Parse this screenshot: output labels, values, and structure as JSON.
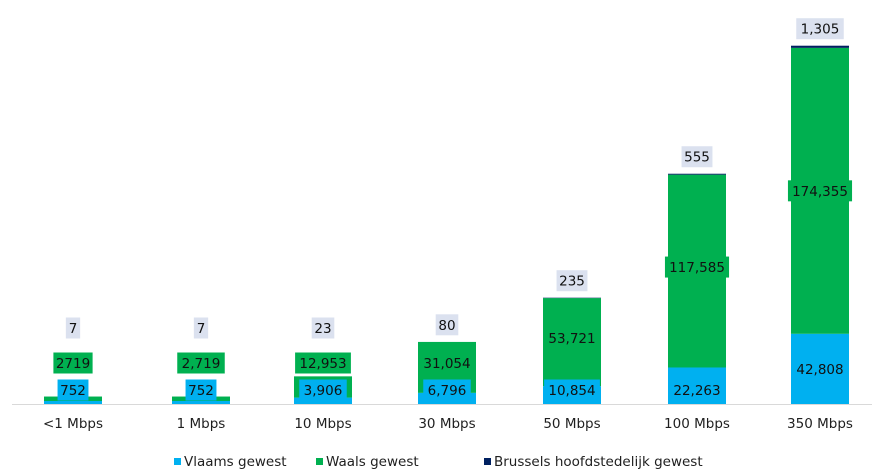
{
  "chart_data": {
    "type": "bar",
    "stacked": true,
    "categories": [
      "<1 Mbps",
      "1 Mbps",
      "10 Mbps",
      "30 Mbps",
      "50 Mbps",
      "100 Mbps",
      "350 Mbps"
    ],
    "series": [
      {
        "name": "Vlaams gewest",
        "color": "#00b0f0",
        "values": [
          752,
          752,
          3906,
          6796,
          10854,
          22263,
          42808
        ],
        "labels": [
          "752",
          "752",
          "3,906",
          "6,796",
          "10,854",
          "22,263",
          "42,808"
        ]
      },
      {
        "name": "Waals gewest",
        "color": "#00b050",
        "values": [
          2719,
          2719,
          12953,
          31054,
          53721,
          117585,
          174355
        ],
        "labels": [
          "2719",
          "2,719",
          "12,953",
          "31,054",
          "53,721",
          "117,585",
          "174,355"
        ]
      },
      {
        "name": "Brussels hoofdstedelijk gewest",
        "color": "#002060",
        "values": [
          7,
          7,
          23,
          80,
          235,
          555,
          1305
        ],
        "labels": [
          "7",
          "7",
          "23",
          "80",
          "235",
          "555",
          "1,305"
        ]
      }
    ],
    "legend_position": "bottom",
    "grid": false
  }
}
